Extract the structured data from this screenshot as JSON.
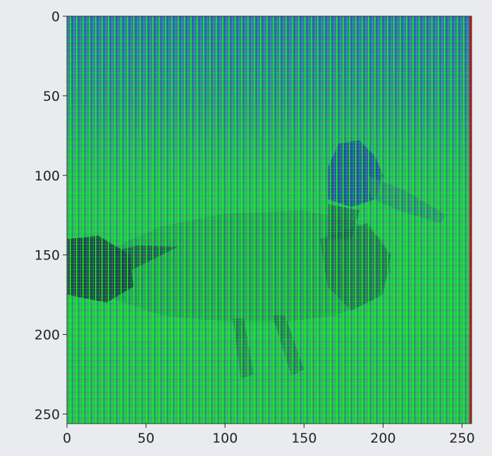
{
  "figure": {
    "background": "#eaebee"
  },
  "chart_data": {
    "type": "heatmap",
    "title": "",
    "xlabel": "",
    "ylabel": "",
    "image_size": [
      256,
      256
    ],
    "xlim": [
      0,
      256
    ],
    "ylim": [
      256,
      0
    ],
    "y_inverted": true,
    "grid": false,
    "legend": "none",
    "x_ticks": [
      0,
      50,
      100,
      150,
      200,
      250
    ],
    "x_tick_labels": [
      "0",
      "50",
      "100",
      "150",
      "200",
      "250"
    ],
    "y_ticks": [
      0,
      50,
      100,
      150,
      200,
      250
    ],
    "y_tick_labels": [
      "0",
      "50",
      "100",
      "150",
      "200",
      "250"
    ],
    "image_description_colors": {
      "dominant": "#22d634",
      "stripe_green": "#10f020",
      "stripe_blue": "#2848c8",
      "stripe_cyan": "#20c8c0",
      "stripe_magenta": "#c838c8",
      "dark": "#1a3a24",
      "edge_red": "#c01818"
    }
  }
}
